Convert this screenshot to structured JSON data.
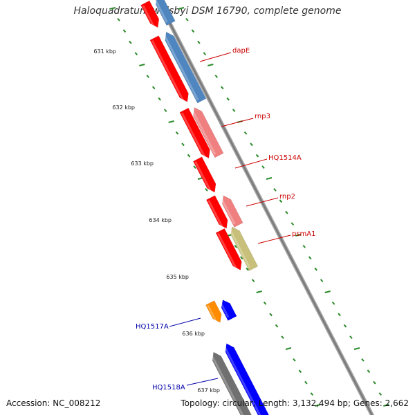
{
  "title": "Haloquadratum walsbyi DSM 16790, complete genome",
  "footer": {
    "accession": "Accession: NC_008212",
    "topology": "Topology: circular; Length: 3,132,494 bp; Genes: 2,662"
  },
  "ticks": [
    "631 kbp",
    "632 kbp",
    "633 kbp",
    "634 kbp",
    "635 kbp",
    "636 kbp",
    "637 kbp"
  ],
  "gene_labels": [
    {
      "text": "dapE",
      "color": "#cc0000"
    },
    {
      "text": "rnp3",
      "color": "#cc0000"
    },
    {
      "text": "HQ1514A",
      "color": "#cc0000"
    },
    {
      "text": "rnp2",
      "color": "#cc0000"
    },
    {
      "text": "psmA1",
      "color": "#cc0000"
    },
    {
      "text": "HQ1517A",
      "color": "#0000aa"
    },
    {
      "text": "HQ1518A",
      "color": "#0000aa"
    }
  ],
  "colors": {
    "backbone": "#8a8a8a",
    "tick": "#2a8a2a",
    "red": "#ff0000",
    "steelblue": "#4f86c0",
    "pink": "#f08080",
    "olive": "#c8c07a",
    "orange": "#ff8c00",
    "blue": "#0000ff",
    "gray": "#707070"
  }
}
